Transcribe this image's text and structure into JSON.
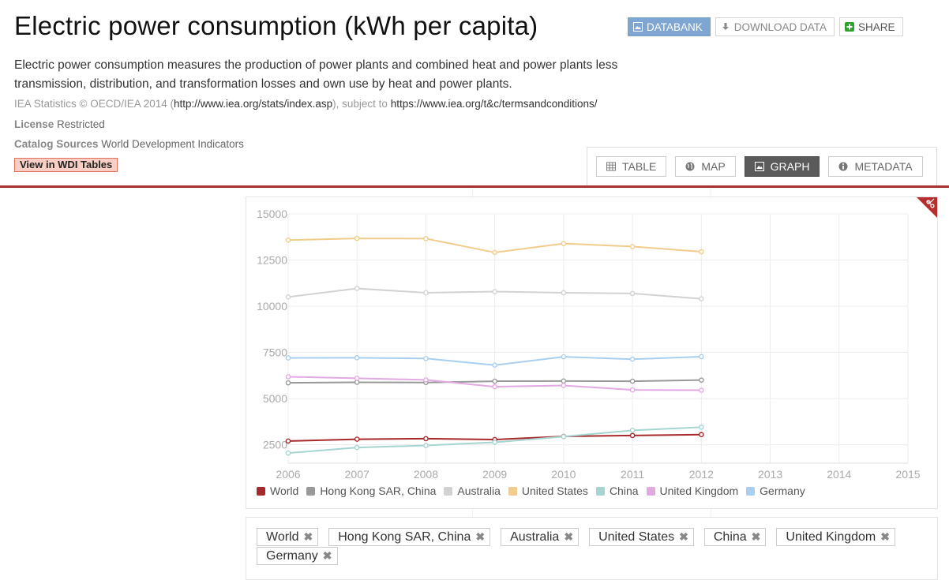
{
  "title": "Electric power consumption (kWh per capita)",
  "actions": {
    "databank": "DATABANK",
    "download": "DOWNLOAD DATA",
    "share": "SHARE"
  },
  "description": "Electric power consumption measures the production of power plants and combined heat and power plants less transmission, distribution, and transformation losses and own use by heat and power plants.",
  "source": {
    "prefix": "IEA Statistics © OECD/IEA 2014 (",
    "url": "http://www.iea.org/stats/index.asp",
    "middle": "), subject to ",
    "terms": "https://www.iea.org/t&c/termsandconditions/"
  },
  "license": {
    "label": "License",
    "value": "Restricted"
  },
  "catalog": {
    "label": "Catalog Sources",
    "value": "World Development Indicators"
  },
  "wdi_button": "View in WDI Tables",
  "view_tabs": [
    {
      "label": "TABLE",
      "icon": "table-icon",
      "active": false
    },
    {
      "label": "MAP",
      "icon": "globe-icon",
      "active": false
    },
    {
      "label": "GRAPH",
      "icon": "image-icon",
      "active": true
    },
    {
      "label": "METADATA",
      "icon": "info-icon",
      "active": false
    }
  ],
  "chart_data": {
    "type": "line",
    "title": "",
    "xlabel": "",
    "ylabel": "",
    "x": [
      2006,
      2007,
      2008,
      2009,
      2010,
      2011,
      2012
    ],
    "xlim": [
      2006,
      2015
    ],
    "ylim": [
      1500,
      15000
    ],
    "x_ticks": [
      "2006",
      "2007",
      "2008",
      "2009",
      "2010",
      "2011",
      "2012",
      "2013",
      "2014",
      "2015"
    ],
    "y_ticks": [
      "15000",
      "12500",
      "10000",
      "7500",
      "5000",
      "2500"
    ],
    "y_tick_values": [
      15000,
      12500,
      10000,
      7500,
      5000,
      2500
    ],
    "grid": true,
    "legend": "bottom",
    "series": [
      {
        "name": "World",
        "color": "#a8292c",
        "values": [
          2700,
          2800,
          2830,
          2780,
          2950,
          3000,
          3050
        ]
      },
      {
        "name": "Hong Kong SAR, China",
        "color": "#999999",
        "values": [
          5850,
          5880,
          5870,
          5940,
          5950,
          5940,
          6000
        ]
      },
      {
        "name": "Australia",
        "color": "#d2d2d2",
        "values": [
          10500,
          10960,
          10730,
          10790,
          10730,
          10690,
          10400
        ]
      },
      {
        "name": "United States",
        "color": "#f2cc8c",
        "values": [
          13580,
          13670,
          13660,
          12910,
          13390,
          13230,
          12950
        ]
      },
      {
        "name": "China",
        "color": "#a6d5d1",
        "values": [
          2050,
          2350,
          2460,
          2630,
          2940,
          3280,
          3450
        ]
      },
      {
        "name": "United Kingdom",
        "color": "#e3a9e3",
        "values": [
          6180,
          6100,
          6010,
          5640,
          5710,
          5470,
          5450
        ]
      },
      {
        "name": "Germany",
        "color": "#a9cff0",
        "values": [
          7200,
          7210,
          7170,
          6810,
          7260,
          7130,
          7270
        ]
      }
    ]
  },
  "filters": [
    "World",
    "Hong Kong SAR, China",
    "Australia",
    "United States",
    "China",
    "United Kingdom",
    "Germany"
  ],
  "filter_remove_glyph": "✖"
}
